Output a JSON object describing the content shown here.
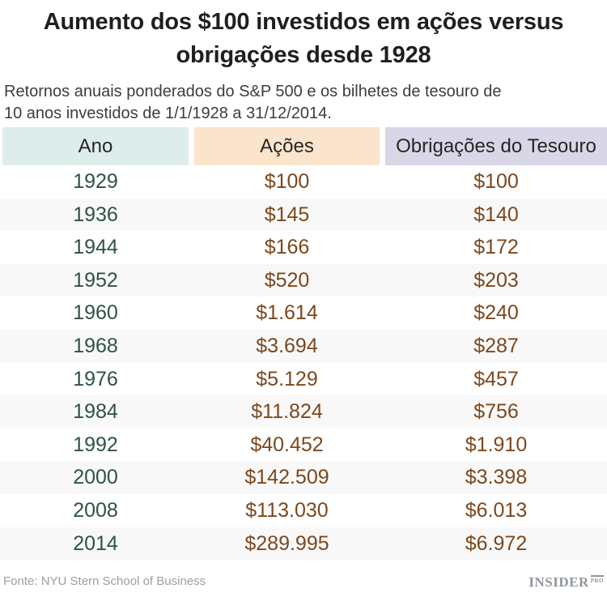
{
  "colors": {
    "title_text": "#1f1f1f",
    "subtitle_text": "#3d3d3d",
    "header_ano_bg": "#dcedec",
    "header_acoes_bg": "#fae5cc",
    "header_obrigacoes_bg": "#d9d6e7",
    "row_stripe": "#f8f8f8",
    "year_text": "#2f5149",
    "value_text": "#7c481d",
    "footer_text": "#9e9e9e",
    "logo_text": "#8f969c"
  },
  "header": {
    "title_line1": "Aumento dos $100 investidos em ações versus",
    "title_line2": "obrigações desde 1928",
    "subtitle_line1": "Retornos anuais ponderados do S&P 500 e os bilhetes de tesouro de",
    "subtitle_line2": "10 anos investidos de 1/1/1928 a 31/12/2014."
  },
  "footer": {
    "source": "Fonte: NYU Stern School of Business",
    "logo_main": "INSIDER",
    "logo_badge": "PRO"
  },
  "chart_data": {
    "type": "table",
    "title": "Aumento dos $100 investidos em ações versus obrigações desde 1928",
    "subtitle": "Retornos anuais ponderados do S&P 500 e os bilhetes de tesouro de 10 anos investidos de 1/1/1928 a 31/12/2014.",
    "columns": [
      "Ano",
      "Ações",
      "Obrigações do Tesouro"
    ],
    "rows": [
      [
        "1929",
        "$100",
        "$100"
      ],
      [
        "1936",
        "$145",
        "$140"
      ],
      [
        "1944",
        "$166",
        "$172"
      ],
      [
        "1952",
        "$520",
        "$203"
      ],
      [
        "1960",
        "$1.614",
        "$240"
      ],
      [
        "1968",
        "$3.694",
        "$287"
      ],
      [
        "1976",
        "$5.129",
        "$457"
      ],
      [
        "1984",
        "$11.824",
        "$756"
      ],
      [
        "1992",
        "$40.452",
        "$1.910"
      ],
      [
        "2000",
        "$142.509",
        "$3.398"
      ],
      [
        "2008",
        "$113.030",
        "$6.013"
      ],
      [
        "2014",
        "$289.995",
        "$6.972"
      ]
    ],
    "source": "Fonte: NYU Stern School of Business"
  }
}
